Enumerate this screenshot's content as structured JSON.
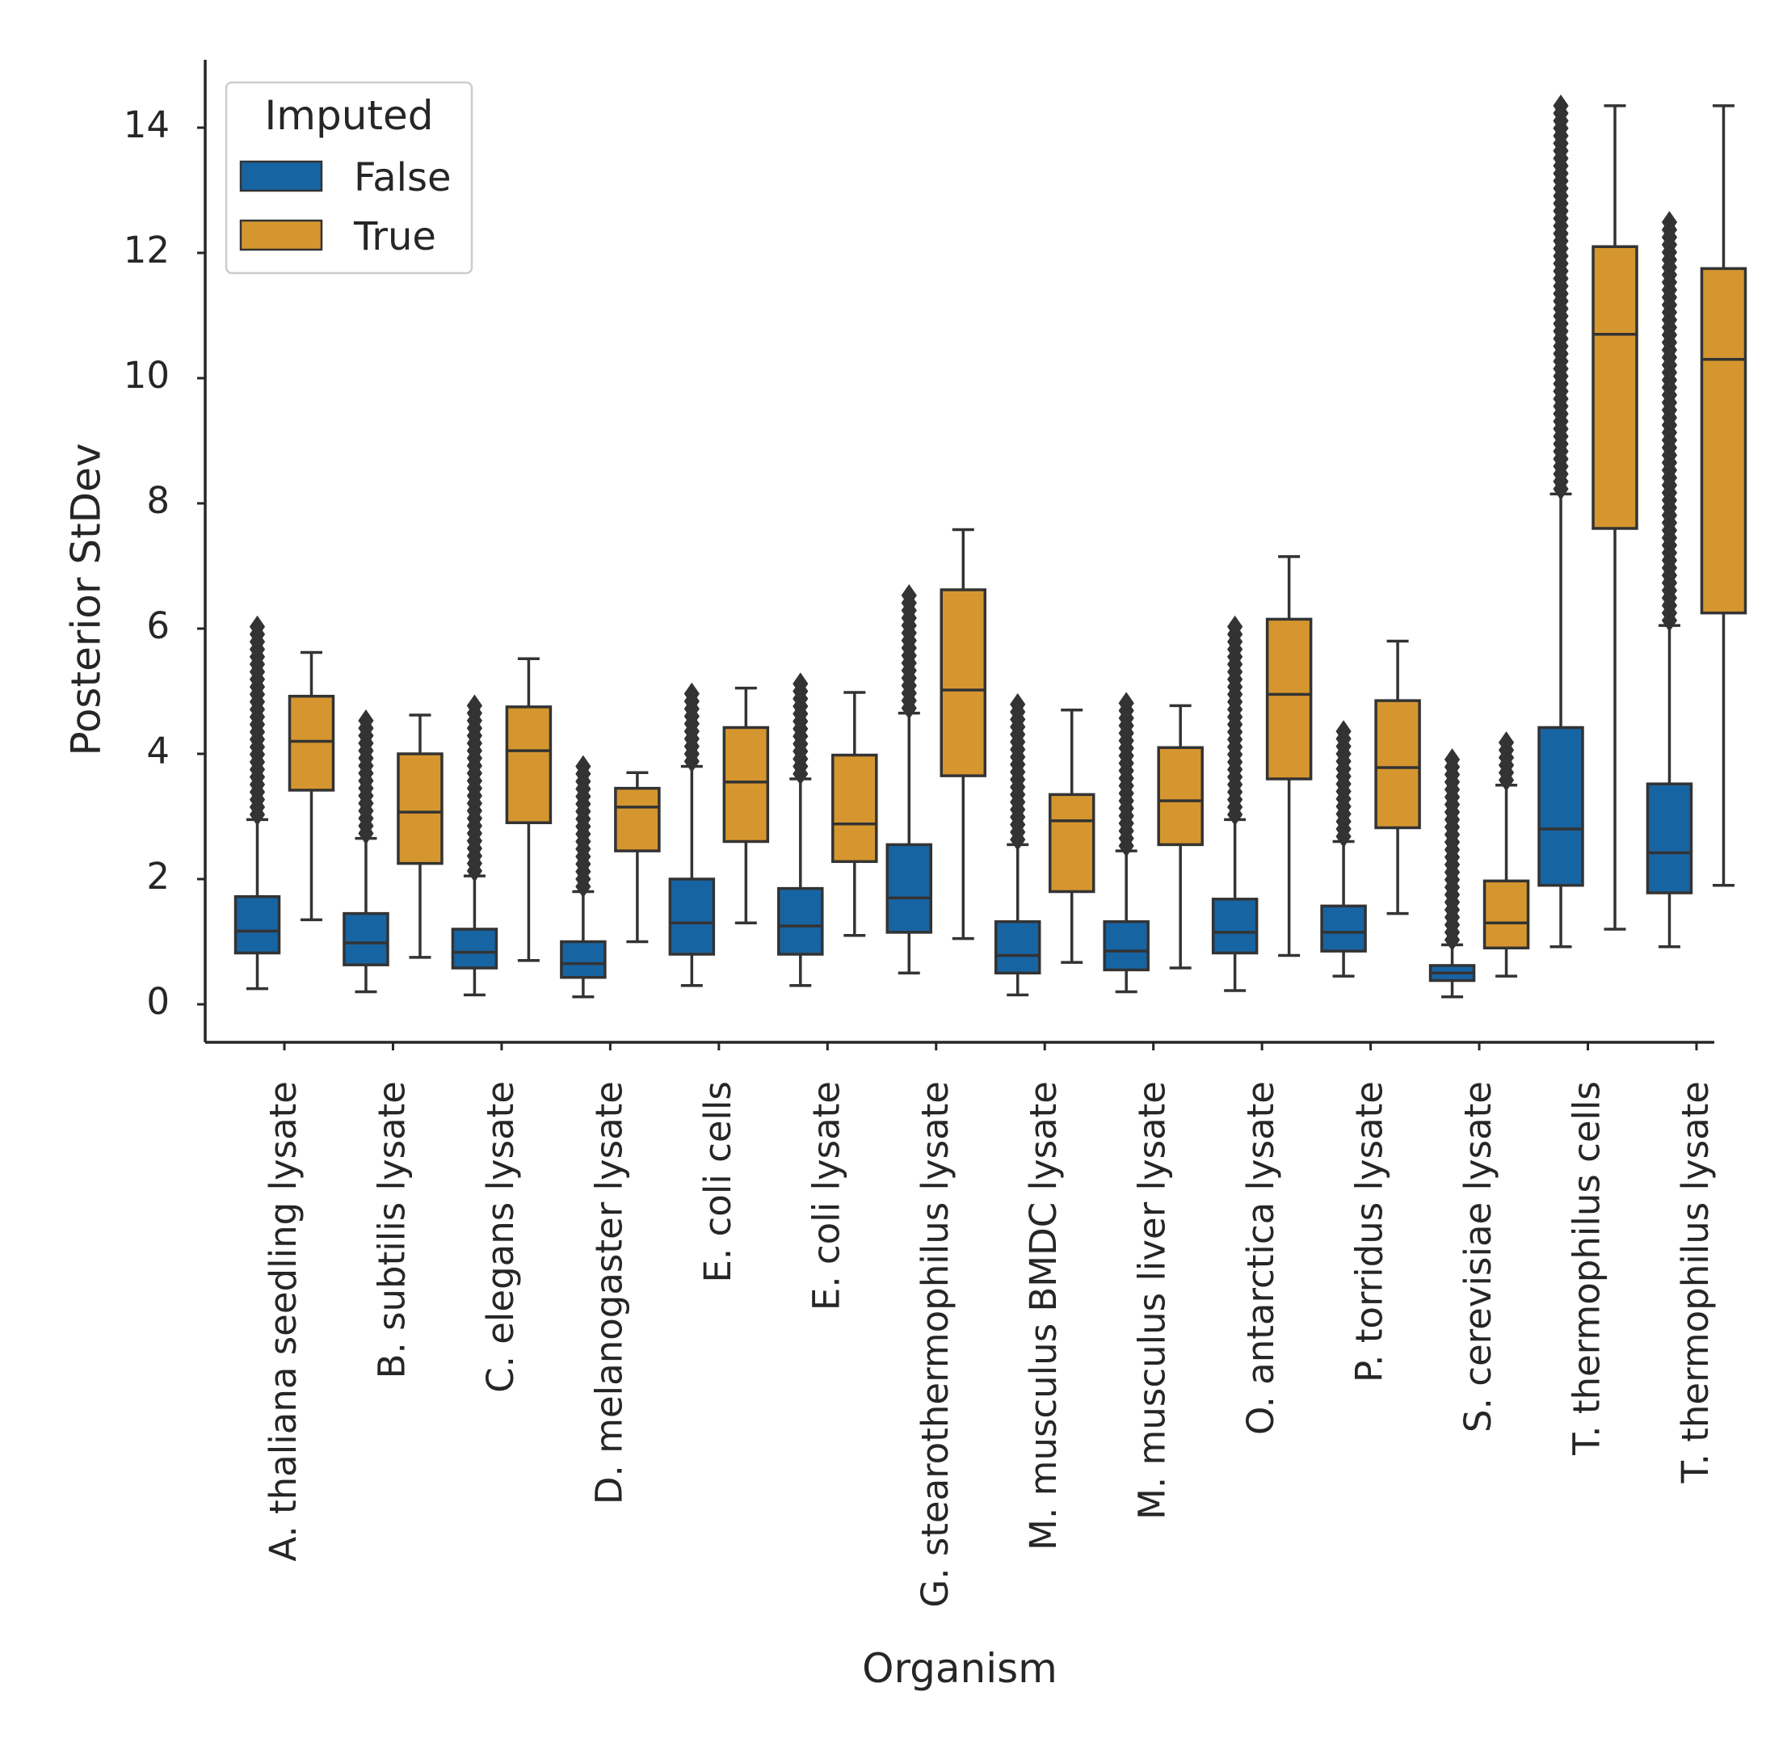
{
  "chart_data": {
    "type": "box",
    "title": "",
    "xlabel": "Organism",
    "ylabel": "Posterior StDev",
    "ylim": [
      -0.6,
      15.1
    ],
    "yticks": [
      0,
      2,
      4,
      6,
      8,
      10,
      12,
      14
    ],
    "grid": false,
    "legend": {
      "title": "Imputed",
      "placement": "top-left"
    },
    "series_colors": {
      "False": "#1764a3",
      "True": "#d6962f"
    },
    "categories": [
      "A. thaliana seedling lysate",
      "B. subtilis lysate",
      "C. elegans lysate",
      "D. melanogaster lysate",
      "E. coli cells",
      "E. coli lysate",
      "G. stearothermophilus lysate",
      "M. musculus BMDC lysate",
      "M. musculus liver lysate",
      "O. antarctica lysate",
      "P. torridus lysate",
      "S. cerevisiae lysate",
      "T. thermophilus cells",
      "T. thermophilus lysate"
    ],
    "series": [
      {
        "name": "False",
        "boxes": [
          {
            "whisker_low": 0.25,
            "q1": 0.82,
            "median": 1.17,
            "q3": 1.72,
            "whisker_high": 2.95,
            "outlier_max": 6.1
          },
          {
            "whisker_low": 0.2,
            "q1": 0.63,
            "median": 0.98,
            "q3": 1.45,
            "whisker_high": 2.65,
            "outlier_max": 4.6
          },
          {
            "whisker_low": 0.15,
            "q1": 0.58,
            "median": 0.83,
            "q3": 1.2,
            "whisker_high": 2.05,
            "outlier_max": 4.85
          },
          {
            "whisker_low": 0.12,
            "q1": 0.43,
            "median": 0.65,
            "q3": 1.0,
            "whisker_high": 1.8,
            "outlier_max": 3.8
          },
          {
            "whisker_low": 0.3,
            "q1": 0.8,
            "median": 1.3,
            "q3": 2.0,
            "whisker_high": 3.8,
            "outlier_max": 5.0
          },
          {
            "whisker_low": 0.3,
            "q1": 0.8,
            "median": 1.25,
            "q3": 1.85,
            "whisker_high": 3.6,
            "outlier_max": 5.15
          },
          {
            "whisker_low": 0.5,
            "q1": 1.15,
            "median": 1.7,
            "q3": 2.55,
            "whisker_high": 4.65,
            "outlier_max": 6.6
          },
          {
            "whisker_low": 0.15,
            "q1": 0.5,
            "median": 0.78,
            "q3": 1.32,
            "whisker_high": 2.55,
            "outlier_max": 4.85
          },
          {
            "whisker_low": 0.2,
            "q1": 0.55,
            "median": 0.85,
            "q3": 1.32,
            "whisker_high": 2.45,
            "outlier_max": 4.85
          },
          {
            "whisker_low": 0.22,
            "q1": 0.82,
            "median": 1.15,
            "q3": 1.68,
            "whisker_high": 2.95,
            "outlier_max": 6.05
          },
          {
            "whisker_low": 0.45,
            "q1": 0.85,
            "median": 1.15,
            "q3": 1.57,
            "whisker_high": 2.6,
            "outlier_max": 4.4
          },
          {
            "whisker_low": 0.12,
            "q1": 0.38,
            "median": 0.5,
            "q3": 0.62,
            "whisker_high": 0.95,
            "outlier_max": 4.0
          },
          {
            "whisker_low": 0.92,
            "q1": 1.9,
            "median": 2.8,
            "q3": 4.42,
            "whisker_high": 8.15,
            "outlier_max": 14.35
          },
          {
            "whisker_low": 0.92,
            "q1": 1.78,
            "median": 2.42,
            "q3": 3.52,
            "whisker_high": 6.05,
            "outlier_max": 12.55
          }
        ]
      },
      {
        "name": "True",
        "boxes": [
          {
            "whisker_low": 1.35,
            "q1": 3.42,
            "median": 4.2,
            "q3": 4.92,
            "whisker_high": 5.62
          },
          {
            "whisker_low": 0.75,
            "q1": 2.25,
            "median": 3.07,
            "q3": 4.0,
            "whisker_high": 4.62
          },
          {
            "whisker_low": 0.7,
            "q1": 2.9,
            "median": 4.05,
            "q3": 4.75,
            "whisker_high": 5.52
          },
          {
            "whisker_low": 1.0,
            "q1": 2.45,
            "median": 3.15,
            "q3": 3.45,
            "whisker_high": 3.7
          },
          {
            "whisker_low": 1.3,
            "q1": 2.6,
            "median": 3.55,
            "q3": 4.42,
            "whisker_high": 5.05
          },
          {
            "whisker_low": 1.1,
            "q1": 2.28,
            "median": 2.88,
            "q3": 3.98,
            "whisker_high": 4.98
          },
          {
            "whisker_low": 1.05,
            "q1": 3.65,
            "median": 5.02,
            "q3": 6.62,
            "whisker_high": 7.58
          },
          {
            "whisker_low": 0.67,
            "q1": 1.8,
            "median": 2.93,
            "q3": 3.35,
            "whisker_high": 4.7
          },
          {
            "whisker_low": 0.58,
            "q1": 2.55,
            "median": 3.25,
            "q3": 4.1,
            "whisker_high": 4.77
          },
          {
            "whisker_low": 0.78,
            "q1": 3.6,
            "median": 4.95,
            "q3": 6.15,
            "whisker_high": 7.15
          },
          {
            "whisker_low": 1.45,
            "q1": 2.82,
            "median": 3.78,
            "q3": 4.85,
            "whisker_high": 5.8
          },
          {
            "whisker_low": 0.45,
            "q1": 0.9,
            "median": 1.3,
            "q3": 1.97,
            "whisker_high": 3.5,
            "outlier_max": 4.25
          },
          {
            "whisker_low": 1.2,
            "q1": 7.6,
            "median": 10.7,
            "q3": 12.1,
            "whisker_high": 14.35
          },
          {
            "whisker_low": 1.9,
            "q1": 6.25,
            "median": 10.3,
            "q3": 11.75,
            "whisker_high": 14.35
          }
        ]
      }
    ]
  }
}
